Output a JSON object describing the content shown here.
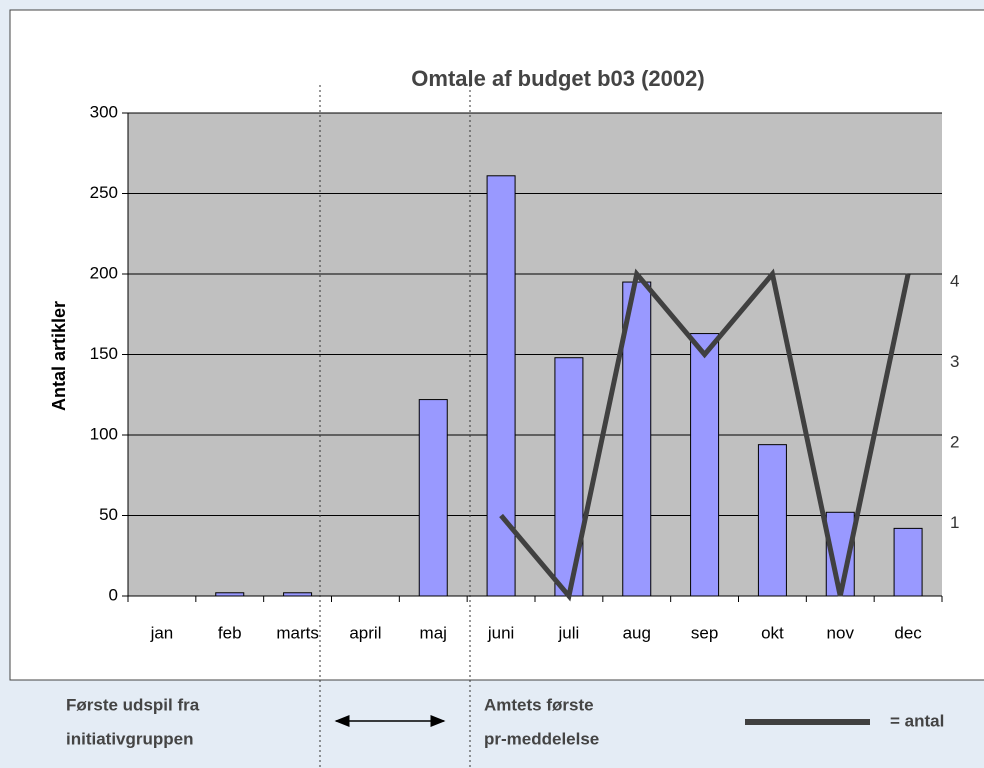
{
  "chart_data": {
    "type": "bar-line",
    "title": "Omtale af budget b03 (2002)",
    "y_label": "Antal artikler",
    "categories": [
      "jan",
      "feb",
      "marts",
      "april",
      "maj",
      "juni",
      "juli",
      "aug",
      "sep",
      "okt",
      "nov",
      "dec"
    ],
    "series": [
      {
        "type": "bar",
        "color": "#9999ff",
        "values": [
          0,
          2,
          2,
          0,
          122,
          261,
          148,
          195,
          163,
          94,
          52,
          42
        ]
      },
      {
        "type": "line",
        "name": "= antal",
        "color": "#404040",
        "axis": "y2",
        "values": [
          null,
          null,
          null,
          null,
          null,
          1,
          0,
          4,
          3,
          4,
          0,
          4
        ]
      }
    ],
    "ylim": [
      0,
      300
    ],
    "yticks": [
      0,
      50,
      100,
      150,
      200,
      250,
      300
    ],
    "y2lim": [
      0,
      6
    ],
    "y2ticks": [
      1,
      2,
      3,
      4
    ],
    "grid": true,
    "annotations": [
      "Første udspil fra",
      "initiativgruppen",
      "Amtets første",
      "pr-meddelelse"
    ]
  }
}
